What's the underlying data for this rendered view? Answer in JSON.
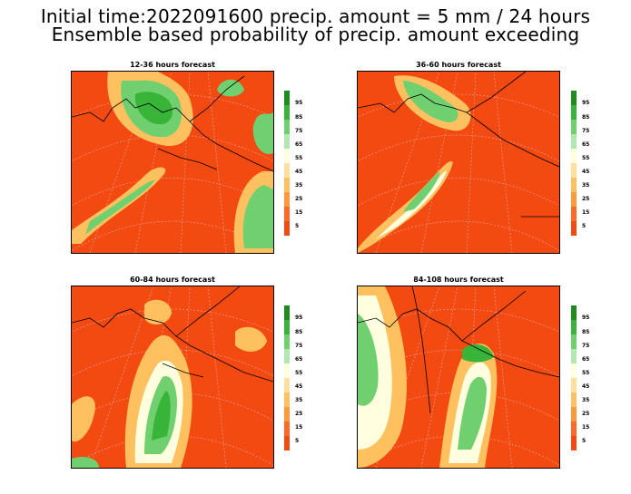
{
  "title_line1": "Initial time:2022091600 precip. amount =  5 mm / 24 hours",
  "title_line2": "Ensemble based probability of precip. amount exceeding",
  "panels": [
    {
      "title": "12-36 hours forecast"
    },
    {
      "title": "36-60 hours forecast"
    },
    {
      "title": "60-84 hours forecast"
    },
    {
      "title": "84-108 hours forecast"
    }
  ],
  "legend": {
    "labels": [
      "95",
      "85",
      "75",
      "65",
      "55",
      "45",
      "35",
      "25",
      "15",
      "5"
    ],
    "colors": [
      "#1e8c1e",
      "#38b438",
      "#70d070",
      "#b0e8b0",
      "#ffffe0",
      "#ffe0a0",
      "#ffc060",
      "#ff9a3c",
      "#ff6a28",
      "#f24a10"
    ]
  },
  "colors": {
    "background": "#f24a10",
    "grid": "#f0a0a0",
    "coast": "#000000"
  }
}
